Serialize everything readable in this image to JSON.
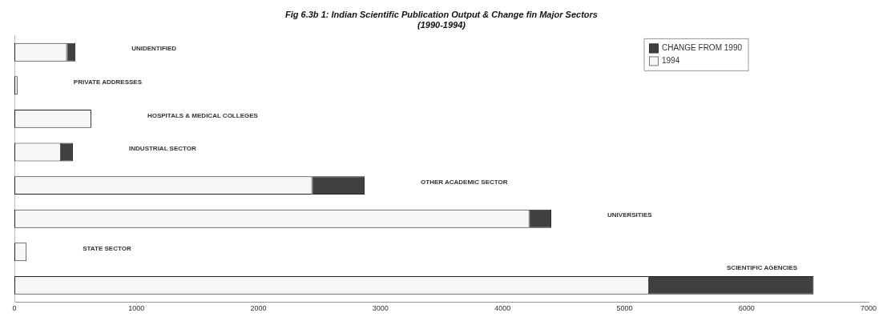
{
  "chart_data": {
    "type": "bar",
    "orientation": "horizontal",
    "stacked": true,
    "title": "Fig 6.3b 1: Indian Scientific Publication Output & Change fin Major Sectors",
    "subtitle": "(1990-1994)",
    "categories": [
      "UNIDENTIFIED",
      "PRIVATE ADDRESSES",
      "HOSPITALS & MEDICAL COLLEGES",
      "INDUSTRIAL SECTOR",
      "OTHER ACADEMIC SECTOR",
      "UNIVERSITIES",
      "STATE SECTOR",
      "SCIENTIFIC AGENCIES"
    ],
    "series": [
      {
        "name": "1994",
        "color": "#f7f7f7",
        "values": [
          430,
          25,
          630,
          380,
          2440,
          4220,
          100,
          5200
        ]
      },
      {
        "name": "CHANGE FROM 1990",
        "color": "#404040",
        "values": [
          70,
          0,
          0,
          100,
          430,
          180,
          0,
          1350
        ]
      }
    ],
    "xlim": [
      0,
      7000
    ],
    "xticks": [
      0,
      1000,
      2000,
      3000,
      4000,
      5000,
      6000,
      7000
    ],
    "grid": false,
    "legend": "top right"
  }
}
